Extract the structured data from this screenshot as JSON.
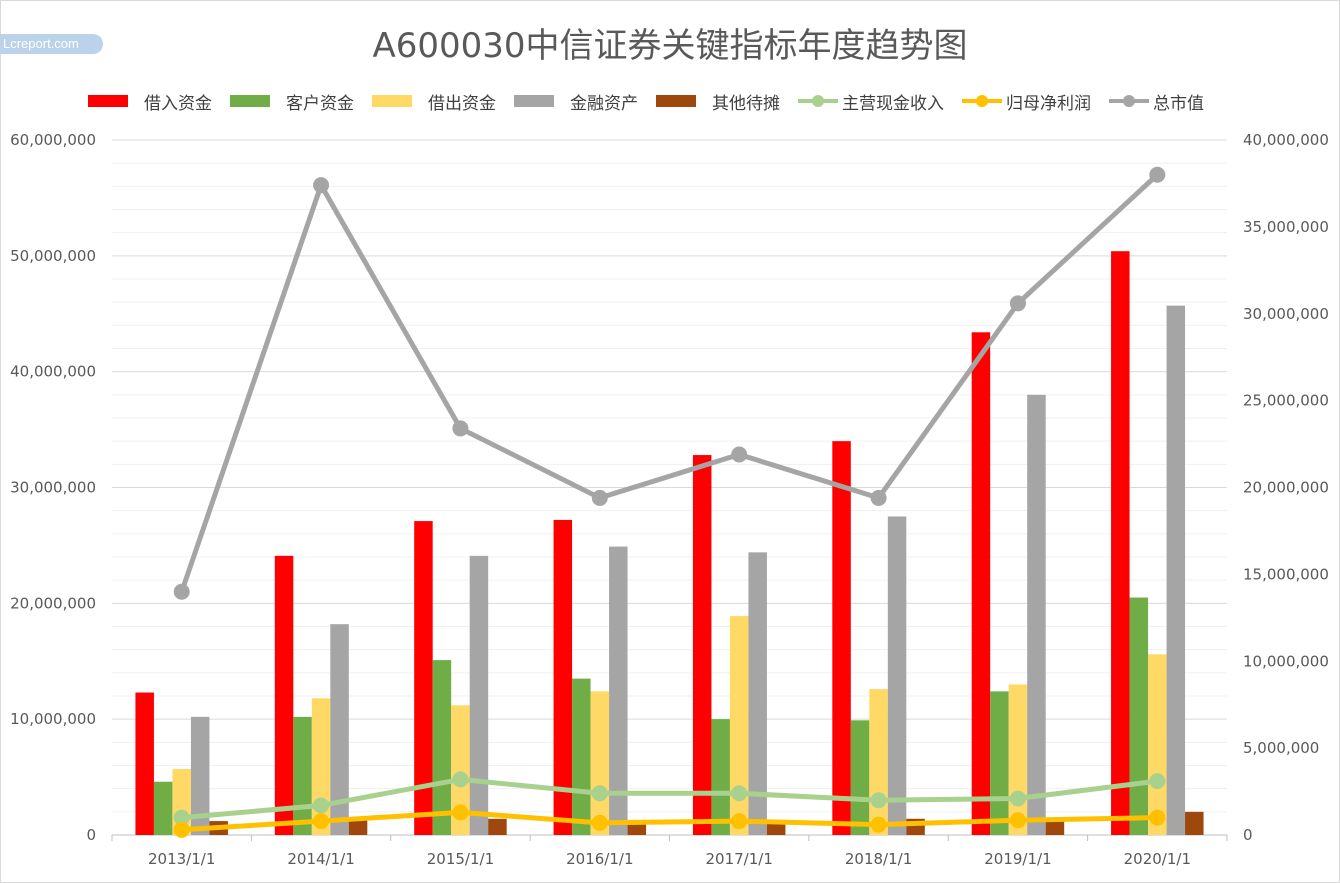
{
  "watermark": "Lcreport.com",
  "chart_data": {
    "type": "bar",
    "title": "A600030中信证券关键指标年度趋势图",
    "categories": [
      "2013/1/1",
      "2014/1/1",
      "2015/1/1",
      "2016/1/1",
      "2017/1/1",
      "2018/1/1",
      "2019/1/1",
      "2020/1/1"
    ],
    "ylim_left": [
      0,
      60000000
    ],
    "ylim_right": [
      0,
      40000000
    ],
    "yticks_left": [
      "0",
      "10,000,000",
      "20,000,000",
      "30,000,000",
      "40,000,000",
      "50,000,000",
      "60,000,000"
    ],
    "yticks_right": [
      "0",
      "5,000,000",
      "10,000,000",
      "15,000,000",
      "20,000,000",
      "25,000,000",
      "30,000,000",
      "35,000,000",
      "40,000,000"
    ],
    "legend_position": "top",
    "grid": true,
    "bar_series": [
      {
        "name": "借入资金",
        "color": "#ff0000",
        "values": [
          12300000,
          24100000,
          27100000,
          27200000,
          32800000,
          34000000,
          43400000,
          50400000
        ]
      },
      {
        "name": "客户资金",
        "color": "#70ad47",
        "values": [
          4600000,
          10200000,
          15100000,
          13500000,
          10000000,
          9900000,
          12400000,
          20500000
        ]
      },
      {
        "name": "借出资金",
        "color": "#ffd966",
        "values": [
          5700000,
          11800000,
          11200000,
          12400000,
          18900000,
          12600000,
          13000000,
          15600000
        ]
      },
      {
        "name": "金融资产",
        "color": "#a5a5a5",
        "values": [
          10200000,
          18200000,
          24100000,
          24900000,
          24400000,
          27500000,
          38000000,
          45700000
        ]
      },
      {
        "name": "其他待摊",
        "color": "#9e480e",
        "values": [
          1200000,
          1300000,
          1400000,
          1300000,
          1300000,
          1400000,
          1200000,
          2000000
        ]
      }
    ],
    "line_series": [
      {
        "name": "主营现金收入",
        "color": "#a9d18e",
        "axis": "right",
        "values": [
          1000000,
          1700000,
          3200000,
          2400000,
          2400000,
          2000000,
          2100000,
          3100000
        ]
      },
      {
        "name": "归母净利润",
        "color": "#ffc000",
        "axis": "right",
        "values": [
          300000,
          800000,
          1300000,
          700000,
          800000,
          600000,
          850000,
          1000000
        ]
      },
      {
        "name": "总市值",
        "color": "#a5a5a5",
        "axis": "right",
        "values": [
          14000000,
          37400000,
          23400000,
          19400000,
          21900000,
          19400000,
          30600000,
          38000000
        ]
      }
    ]
  }
}
